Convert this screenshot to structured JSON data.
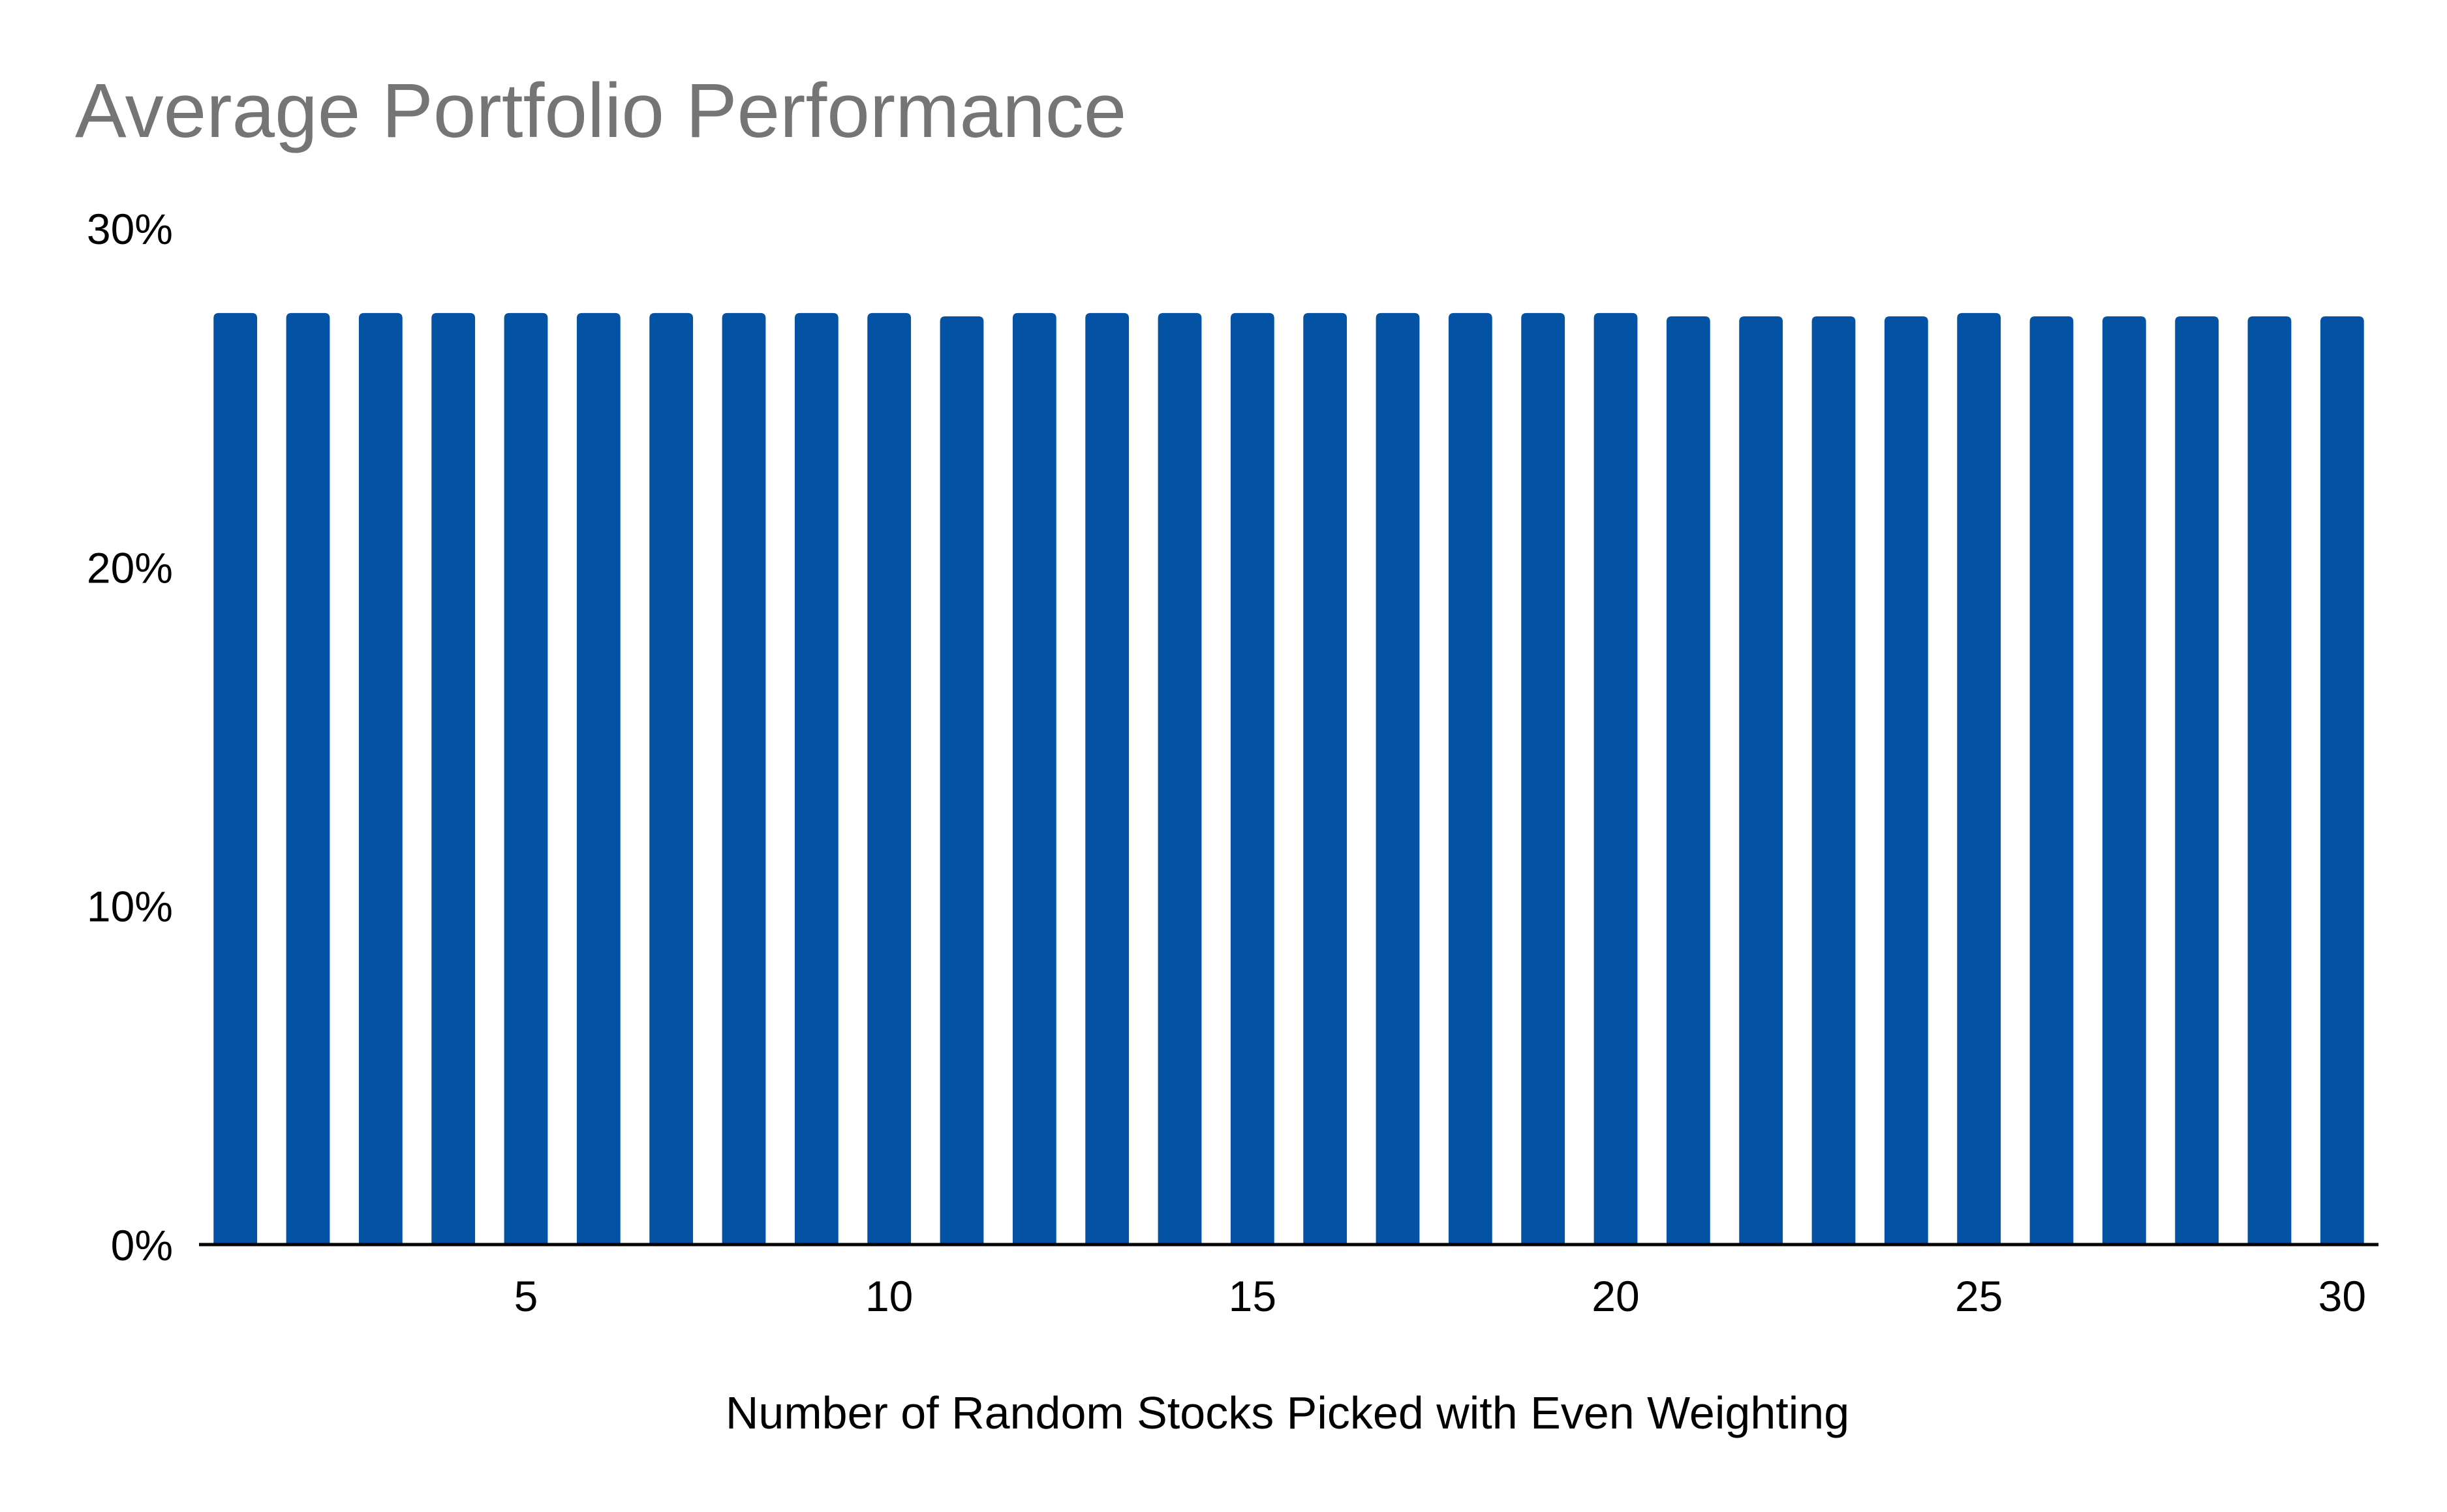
{
  "chart_data": {
    "type": "bar",
    "title": "Average Portfolio Performance",
    "xlabel": "Number of Random Stocks Picked with Even Weighting",
    "ylabel": "",
    "categories": [
      1,
      2,
      3,
      4,
      5,
      6,
      7,
      8,
      9,
      10,
      11,
      12,
      13,
      14,
      15,
      16,
      17,
      18,
      19,
      20,
      21,
      22,
      23,
      24,
      25,
      26,
      27,
      28,
      29,
      30
    ],
    "values": [
      27.5,
      27.5,
      27.5,
      27.5,
      27.5,
      27.5,
      27.5,
      27.5,
      27.5,
      27.5,
      27.4,
      27.5,
      27.5,
      27.5,
      27.5,
      27.5,
      27.5,
      27.5,
      27.5,
      27.5,
      27.4,
      27.4,
      27.4,
      27.4,
      27.5,
      27.4,
      27.4,
      27.4,
      27.4,
      27.4
    ],
    "value_unit": "%",
    "ylim": [
      0,
      30
    ],
    "xlim": [
      0.5,
      30.5
    ],
    "y_ticks": [
      "0%",
      "10%",
      "20%",
      "30%"
    ],
    "y_tick_values": [
      0,
      10,
      20,
      30
    ],
    "x_ticks": [
      "5",
      "10",
      "15",
      "20",
      "25",
      "30"
    ],
    "x_tick_values": [
      5,
      10,
      15,
      20,
      25,
      30
    ],
    "grid": false,
    "legend": "none",
    "colors": {
      "bar": "#0452a4",
      "title": "#757575",
      "text": "#000000",
      "axis": "#000000"
    }
  }
}
